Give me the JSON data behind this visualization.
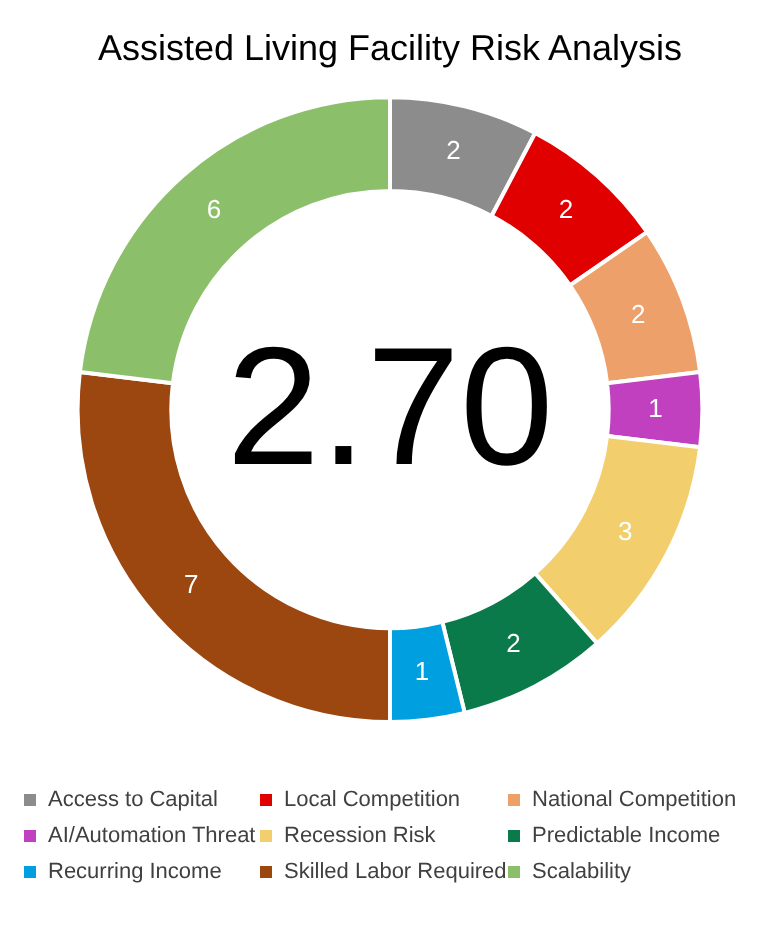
{
  "chart_data": {
    "type": "donut",
    "title": "Assisted Living Facility Risk Analysis",
    "categories": [
      "Access to Capital",
      "Local Competition",
      "National Competition",
      "AI/Automation Threat",
      "Recession Risk",
      "Predictable Income",
      "Recurring Income",
      "Skilled Labor Required",
      "Scalability"
    ],
    "values": [
      2,
      2,
      2,
      1,
      3,
      2,
      1,
      7,
      6
    ],
    "colors": [
      "#8c8c8c",
      "#e00000",
      "#eea06a",
      "#c040c0",
      "#f2cf6c",
      "#0b7a4a",
      "#00a0e0",
      "#9c4610",
      "#8cbf6a"
    ],
    "data_labels": true,
    "legend": "bottom",
    "annotations": [
      "2.70"
    ]
  }
}
